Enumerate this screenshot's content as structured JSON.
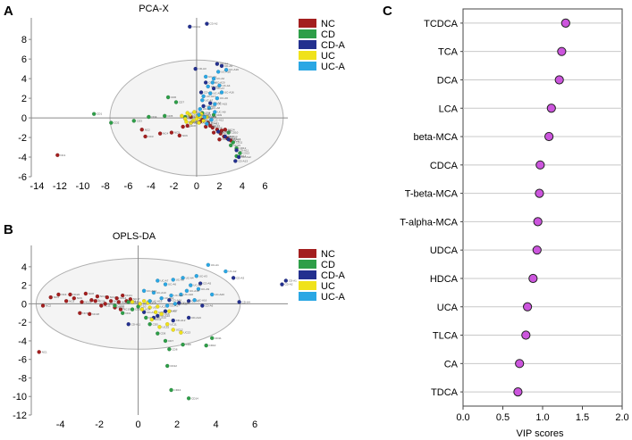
{
  "panels": {
    "a": {
      "letter": "A"
    },
    "b": {
      "letter": "B"
    },
    "c": {
      "letter": "C"
    }
  },
  "colors": {
    "NC": "#a31f1f",
    "CD": "#2e9e48",
    "CD-A": "#23308f",
    "UC": "#f0e21a",
    "UC-A": "#2aa7e4",
    "vip_fill": "#cc55dd",
    "grid": "#c8c8c8",
    "ellipse_fill": "#f4f4f4"
  },
  "chart_data": [
    {
      "type": "scatter",
      "title": "PCA-X",
      "xlabel": "",
      "ylabel": "",
      "xlim": [
        -14.5,
        8
      ],
      "ylim": [
        -6,
        10.2
      ],
      "x_ticks": [
        -14,
        -12,
        -10,
        -8,
        -6,
        -4,
        -2,
        0,
        2,
        4,
        6
      ],
      "y_ticks": [
        -6,
        -4,
        -2,
        0,
        2,
        4,
        6,
        8
      ],
      "ellipse": {
        "cx": 0,
        "cy": 0,
        "rx": 7.6,
        "ry": 5.9
      },
      "legend": [
        "NC",
        "CD",
        "CD-A",
        "UC",
        "UC-A"
      ],
      "series": [
        {
          "name": "NC",
          "points": [
            [
              -12.2,
              -3.8
            ],
            [
              -4.8,
              -1.2
            ],
            [
              -4.5,
              -1.9
            ],
            [
              -3.2,
              -1.6
            ],
            [
              -2.2,
              -1.5
            ],
            [
              -1.5,
              -1.8
            ],
            [
              -1.2,
              -0.9
            ],
            [
              -0.8,
              -0.8
            ],
            [
              -0.5,
              0.1
            ],
            [
              0.5,
              -0.2
            ],
            [
              1.0,
              -0.5
            ],
            [
              1.4,
              -1.0
            ],
            [
              1.8,
              -1.2
            ],
            [
              2.1,
              -1.6
            ],
            [
              2.4,
              -1.9
            ],
            [
              2.7,
              -2.1
            ],
            [
              3.0,
              -2.3
            ],
            [
              1.5,
              -1.5
            ],
            [
              2.2,
              -1.3
            ],
            [
              0.8,
              -0.9
            ],
            [
              -0.5,
              -0.5
            ],
            [
              0.3,
              -0.4
            ],
            [
              1.2,
              -0.8
            ],
            [
              2.5,
              -1.2
            ],
            [
              2.0,
              -2.2
            ]
          ]
        },
        {
          "name": "CD",
          "points": [
            [
              -9.0,
              0.4
            ],
            [
              -7.5,
              -0.5
            ],
            [
              -5.5,
              -0.3
            ],
            [
              -4.2,
              0.1
            ],
            [
              -2.8,
              0.2
            ],
            [
              -2.5,
              2.1
            ],
            [
              -1.8,
              1.6
            ],
            [
              0.5,
              0.5
            ],
            [
              1.5,
              0.3
            ],
            [
              2.8,
              -1.5
            ],
            [
              3.2,
              -2.5
            ],
            [
              3.5,
              -3.1
            ],
            [
              3.8,
              -3.6
            ],
            [
              3.5,
              -3.9
            ],
            [
              3.0,
              -2.8
            ],
            [
              -1.0,
              0.1
            ]
          ]
        },
        {
          "name": "CD-A",
          "points": [
            [
              -0.6,
              9.3
            ],
            [
              0.9,
              9.6
            ],
            [
              -0.1,
              5.0
            ],
            [
              1.8,
              5.5
            ],
            [
              2.2,
              5.3
            ],
            [
              0.8,
              3.6
            ],
            [
              1.5,
              3.0
            ],
            [
              0.4,
              2.6
            ],
            [
              1.2,
              1.5
            ],
            [
              0.6,
              1.2
            ],
            [
              3.5,
              -3.3
            ],
            [
              3.7,
              -4.0
            ],
            [
              3.4,
              -4.4
            ],
            [
              2.5,
              -1.9
            ],
            [
              2.8,
              -2.2
            ],
            [
              1.9,
              -1.4
            ]
          ]
        },
        {
          "name": "UC",
          "points": [
            [
              -1.0,
              -0.1
            ],
            [
              -0.6,
              0.3
            ],
            [
              -0.3,
              -0.3
            ],
            [
              0.1,
              0.2
            ],
            [
              0.3,
              0.1
            ],
            [
              -0.8,
              0.5
            ],
            [
              0.6,
              -0.3
            ],
            [
              -0.2,
              0.6
            ],
            [
              -1.3,
              0.2
            ],
            [
              0.0,
              -0.1
            ],
            [
              0.4,
              0.4
            ],
            [
              -0.5,
              -0.5
            ],
            [
              0.9,
              0.1
            ],
            [
              -0.9,
              -0.4
            ],
            [
              0.2,
              -0.5
            ]
          ]
        },
        {
          "name": "UC-A",
          "points": [
            [
              0.8,
              4.2
            ],
            [
              1.5,
              4.0
            ],
            [
              1.0,
              3.2
            ],
            [
              2.0,
              3.3
            ],
            [
              1.2,
              2.5
            ],
            [
              1.8,
              2.0
            ],
            [
              0.5,
              1.8
            ],
            [
              1.1,
              1.0
            ],
            [
              1.6,
              0.6
            ],
            [
              0.3,
              0.9
            ],
            [
              0.7,
              0.1
            ],
            [
              1.3,
              -0.2
            ],
            [
              0.9,
              -0.6
            ],
            [
              0.2,
              0.3
            ],
            [
              1.6,
              1.4
            ],
            [
              2.2,
              2.6
            ],
            [
              0.6,
              2.2
            ],
            [
              1.9,
              4.7
            ],
            [
              2.6,
              4.9
            ],
            [
              1.4,
              3.6
            ]
          ]
        }
      ]
    },
    {
      "type": "scatter",
      "title": "OPLS-DA",
      "xlabel": "",
      "ylabel": "",
      "xlim": [
        -5.5,
        7.7
      ],
      "ylim": [
        -12,
        6.3
      ],
      "x_ticks": [
        -4,
        -2,
        0,
        2,
        4,
        6
      ],
      "y_ticks": [
        -12,
        -10,
        -8,
        -6,
        -4,
        -2,
        0,
        2,
        4
      ],
      "ellipse": {
        "cx": 0,
        "cy": 0,
        "rx": 5.25,
        "ry": 4.9
      },
      "legend": [
        "NC",
        "CD",
        "CD-A",
        "UC",
        "UC-A"
      ],
      "series": [
        {
          "name": "NC",
          "points": [
            [
              -5.1,
              -5.2
            ],
            [
              -4.9,
              -0.2
            ],
            [
              -4.5,
              0.7
            ],
            [
              -4.1,
              1.0
            ],
            [
              -3.7,
              0.3
            ],
            [
              -3.3,
              0.6
            ],
            [
              -3.0,
              -1.0
            ],
            [
              -2.7,
              1.1
            ],
            [
              -2.4,
              0.4
            ],
            [
              -2.1,
              0.8
            ],
            [
              -1.9,
              -0.2
            ],
            [
              -1.6,
              0.7
            ],
            [
              -1.4,
              0.3
            ],
            [
              -1.1,
              0.6
            ],
            [
              -0.9,
              -0.6
            ],
            [
              -0.6,
              0.3
            ],
            [
              -0.4,
              0.5
            ],
            [
              -2.5,
              -1.1
            ],
            [
              -1.7,
              0.0
            ],
            [
              -1.2,
              -0.4
            ],
            [
              -0.8,
              0.9
            ],
            [
              -3.5,
              1.0
            ],
            [
              -2.9,
              0.2
            ],
            [
              -2.2,
              0.3
            ],
            [
              -1.0,
              0.2
            ]
          ]
        },
        {
          "name": "CD",
          "points": [
            [
              -0.8,
              -1.0
            ],
            [
              -0.3,
              -0.6
            ],
            [
              0.0,
              -0.3
            ],
            [
              0.4,
              -1.5
            ],
            [
              0.6,
              -2.2
            ],
            [
              1.0,
              -3.2
            ],
            [
              1.4,
              -4.0
            ],
            [
              1.6,
              -4.9
            ],
            [
              2.3,
              -4.4
            ],
            [
              3.5,
              -4.5
            ],
            [
              3.8,
              -3.7
            ],
            [
              1.5,
              -6.7
            ],
            [
              1.7,
              -9.3
            ],
            [
              2.6,
              -10.2
            ],
            [
              -0.5,
              0.2
            ],
            [
              -1.2,
              -0.2
            ]
          ]
        },
        {
          "name": "CD-A",
          "points": [
            [
              7.6,
              2.5
            ],
            [
              7.4,
              2.1
            ],
            [
              4.9,
              2.8
            ],
            [
              5.2,
              0.2
            ],
            [
              3.2,
              2.2
            ],
            [
              3.3,
              -0.2
            ],
            [
              2.6,
              0.3
            ],
            [
              2.1,
              0.1
            ],
            [
              1.4,
              -0.8
            ],
            [
              1.0,
              -1.3
            ],
            [
              -0.5,
              -2.2
            ],
            [
              1.8,
              -1.8
            ],
            [
              2.6,
              -1.5
            ],
            [
              0.8,
              -1.5
            ],
            [
              0.3,
              -0.9
            ],
            [
              1.6,
              0.4
            ]
          ]
        },
        {
          "name": "UC",
          "points": [
            [
              -0.3,
              0.2
            ],
            [
              0.1,
              0.0
            ],
            [
              0.3,
              0.3
            ],
            [
              0.6,
              -0.4
            ],
            [
              0.9,
              -0.9
            ],
            [
              1.2,
              -1.1
            ],
            [
              1.6,
              -0.8
            ],
            [
              0.2,
              -0.6
            ],
            [
              0.5,
              0.1
            ],
            [
              1.0,
              -0.3
            ],
            [
              1.5,
              -2.2
            ],
            [
              1.8,
              -2.8
            ],
            [
              2.2,
              -3.1
            ],
            [
              0.7,
              -1.7
            ],
            [
              1.1,
              -2.5
            ]
          ]
        },
        {
          "name": "UC-A",
          "points": [
            [
              3.6,
              4.2
            ],
            [
              4.5,
              3.5
            ],
            [
              3.0,
              3.0
            ],
            [
              2.3,
              2.8
            ],
            [
              1.8,
              2.6
            ],
            [
              1.4,
              2.1
            ],
            [
              1.0,
              2.5
            ],
            [
              2.7,
              2.0
            ],
            [
              3.1,
              1.6
            ],
            [
              2.2,
              1.0
            ],
            [
              1.7,
              0.9
            ],
            [
              1.2,
              0.6
            ],
            [
              0.8,
              1.2
            ],
            [
              0.3,
              1.4
            ],
            [
              1.9,
              0.0
            ],
            [
              2.9,
              0.4
            ],
            [
              1.5,
              -0.2
            ],
            [
              2.5,
              1.4
            ],
            [
              0.6,
              0.3
            ],
            [
              3.8,
              1.0
            ]
          ]
        }
      ]
    },
    {
      "type": "dot",
      "title": "",
      "xlabel": "VIP scores",
      "ylabel": "",
      "xlim": [
        0.0,
        2.0
      ],
      "x_ticks": [
        "0.0",
        "0.5",
        "1.0",
        "1.5",
        "2.0"
      ],
      "categories": [
        "TCDCA",
        "TCA",
        "DCA",
        "LCA",
        "beta-MCA",
        "CDCA",
        "T-beta-MCA",
        "T-alpha-MCA",
        "UDCA",
        "HDCA",
        "UCA",
        "TLCA",
        "CA",
        "TDCA"
      ],
      "values": [
        1.29,
        1.24,
        1.21,
        1.11,
        1.08,
        0.97,
        0.96,
        0.94,
        0.93,
        0.88,
        0.81,
        0.79,
        0.71,
        0.69
      ]
    }
  ]
}
